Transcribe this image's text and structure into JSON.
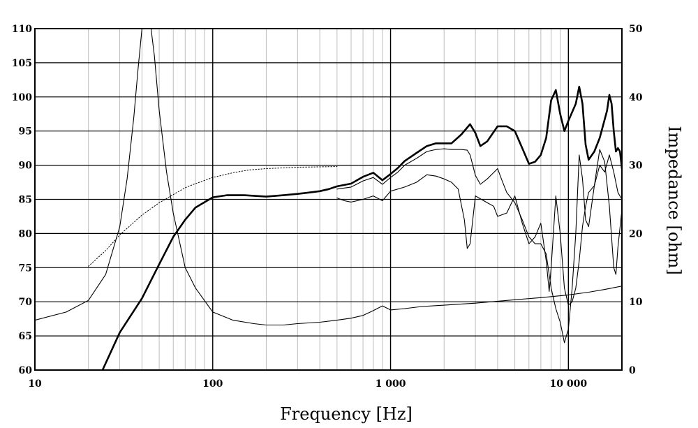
{
  "chart_data": {
    "type": "line",
    "title": "",
    "xlabel": "Frequency [Hz]",
    "ylabel": "",
    "y2label": "Impedance [ohm]",
    "x_scale": "log",
    "xlim": [
      10,
      20000
    ],
    "ylim": [
      60,
      110
    ],
    "y2lim": [
      0,
      50
    ],
    "grid": true,
    "x_ticks": [
      {
        "value": 10,
        "label": "10"
      },
      {
        "value": 100,
        "label": "100"
      },
      {
        "value": 1000,
        "label": "1 000"
      },
      {
        "value": 10000,
        "label": "10 000"
      }
    ],
    "y_ticks": [
      {
        "value": 110,
        "label": "110"
      },
      {
        "value": 105,
        "label": "105"
      },
      {
        "value": 100,
        "label": "100"
      },
      {
        "value": 95,
        "label": "95"
      },
      {
        "value": 90,
        "label": "90"
      },
      {
        "value": 85,
        "label": "85"
      },
      {
        "value": 80,
        "label": "80"
      },
      {
        "value": 75,
        "label": "75"
      },
      {
        "value": 70,
        "label": "70"
      },
      {
        "value": 65,
        "label": "65"
      },
      {
        "value": 60,
        "label": "60"
      }
    ],
    "y2_ticks": [
      {
        "value": 50,
        "label": "50"
      },
      {
        "value": 40,
        "label": "40"
      },
      {
        "value": 30,
        "label": "30"
      },
      {
        "value": 20,
        "label": "20"
      },
      {
        "value": 10,
        "label": "10"
      },
      {
        "value": 0,
        "label": "0"
      }
    ],
    "series": [
      {
        "axis": "y",
        "style": "thick",
        "color": "#000000",
        "points": [
          [
            24,
            60
          ],
          [
            30,
            65.5
          ],
          [
            40,
            70.5
          ],
          [
            50,
            75.5
          ],
          [
            60,
            79.5
          ],
          [
            70,
            82
          ],
          [
            80,
            83.8
          ],
          [
            100,
            85.3
          ],
          [
            120,
            85.6
          ],
          [
            150,
            85.6
          ],
          [
            200,
            85.4
          ],
          [
            250,
            85.6
          ],
          [
            300,
            85.8
          ],
          [
            350,
            86
          ],
          [
            400,
            86.2
          ],
          [
            450,
            86.5
          ],
          [
            500,
            86.9
          ],
          [
            600,
            87.3
          ],
          [
            700,
            88.3
          ],
          [
            800,
            88.9
          ],
          [
            900,
            87.8
          ],
          [
            1000,
            88.7
          ],
          [
            1100,
            89.6
          ],
          [
            1200,
            90.6
          ],
          [
            1400,
            91.8
          ],
          [
            1600,
            92.8
          ],
          [
            1800,
            93.2
          ],
          [
            2000,
            93.2
          ],
          [
            2200,
            93.2
          ],
          [
            2500,
            94.5
          ],
          [
            2800,
            96
          ],
          [
            3000,
            94.7
          ],
          [
            3200,
            92.8
          ],
          [
            3500,
            93.5
          ],
          [
            4000,
            95.7
          ],
          [
            4500,
            95.7
          ],
          [
            5000,
            95
          ],
          [
            5500,
            92.5
          ],
          [
            6000,
            90.2
          ],
          [
            6500,
            90.5
          ],
          [
            7000,
            91.5
          ],
          [
            7500,
            94
          ],
          [
            8000,
            99.5
          ],
          [
            8500,
            101
          ],
          [
            9000,
            97.5
          ],
          [
            9500,
            95
          ],
          [
            10000,
            96.5
          ],
          [
            11000,
            99
          ],
          [
            11500,
            101.5
          ],
          [
            12000,
            99
          ],
          [
            12500,
            93
          ],
          [
            13000,
            90.8
          ],
          [
            14000,
            92
          ],
          [
            15000,
            94
          ],
          [
            16500,
            98
          ],
          [
            17000,
            100.3
          ],
          [
            17500,
            99
          ],
          [
            18000,
            95
          ],
          [
            18500,
            92
          ],
          [
            19000,
            92.5
          ],
          [
            19500,
            92
          ],
          [
            20000,
            89.5
          ]
        ]
      },
      {
        "axis": "y",
        "style": "thin",
        "color": "#000000",
        "points": [
          [
            500,
            86.5
          ],
          [
            600,
            86.8
          ],
          [
            700,
            87.7
          ],
          [
            800,
            88.2
          ],
          [
            900,
            87.2
          ],
          [
            1000,
            88.2
          ],
          [
            1100,
            89
          ],
          [
            1200,
            90
          ],
          [
            1400,
            91
          ],
          [
            1600,
            92
          ],
          [
            1800,
            92.3
          ],
          [
            2000,
            92.4
          ],
          [
            2200,
            92.3
          ],
          [
            2500,
            92.3
          ],
          [
            2700,
            92.2
          ],
          [
            2800,
            91.5
          ],
          [
            3000,
            88.5
          ],
          [
            3200,
            87.2
          ],
          [
            3500,
            88
          ],
          [
            4000,
            89.5
          ],
          [
            4200,
            88
          ],
          [
            4500,
            86
          ],
          [
            5000,
            84.5
          ],
          [
            5500,
            82
          ],
          [
            6000,
            79.5
          ],
          [
            6500,
            78.5
          ],
          [
            7000,
            78.5
          ],
          [
            7500,
            77
          ],
          [
            8000,
            72
          ],
          [
            8500,
            69
          ],
          [
            9000,
            67
          ],
          [
            9500,
            64
          ],
          [
            10000,
            66
          ],
          [
            10500,
            72
          ],
          [
            11000,
            80
          ],
          [
            11500,
            91.5
          ],
          [
            12000,
            88
          ],
          [
            12500,
            82
          ],
          [
            13000,
            81
          ],
          [
            14000,
            87
          ],
          [
            15000,
            90
          ],
          [
            16000,
            89
          ],
          [
            17000,
            91.5
          ],
          [
            18000,
            89
          ],
          [
            19000,
            86
          ],
          [
            20000,
            85
          ]
        ]
      },
      {
        "axis": "y",
        "style": "thin",
        "color": "#000000",
        "points": [
          [
            500,
            85.2
          ],
          [
            550,
            84.8
          ],
          [
            600,
            84.6
          ],
          [
            700,
            85
          ],
          [
            800,
            85.5
          ],
          [
            900,
            84.8
          ],
          [
            1000,
            86.2
          ],
          [
            1200,
            86.8
          ],
          [
            1400,
            87.5
          ],
          [
            1600,
            88.6
          ],
          [
            1800,
            88.4
          ],
          [
            2000,
            88
          ],
          [
            2200,
            87.5
          ],
          [
            2400,
            86.5
          ],
          [
            2600,
            82
          ],
          [
            2700,
            77.8
          ],
          [
            2800,
            78.5
          ],
          [
            3000,
            85.5
          ],
          [
            3500,
            84.5
          ],
          [
            3800,
            84
          ],
          [
            4000,
            82.5
          ],
          [
            4500,
            83
          ],
          [
            5000,
            85.5
          ],
          [
            5500,
            81.5
          ],
          [
            6000,
            78.5
          ],
          [
            6500,
            79.5
          ],
          [
            7000,
            81.5
          ],
          [
            7500,
            76
          ],
          [
            7800,
            71.5
          ],
          [
            8000,
            75
          ],
          [
            8500,
            85.5
          ],
          [
            9000,
            80
          ],
          [
            9500,
            72
          ],
          [
            10000,
            69.5
          ],
          [
            10500,
            70
          ],
          [
            11000,
            72
          ],
          [
            11500,
            76
          ],
          [
            12000,
            81
          ],
          [
            12500,
            84
          ],
          [
            13000,
            86
          ],
          [
            14000,
            87
          ],
          [
            15000,
            92.3
          ],
          [
            16000,
            90.5
          ],
          [
            17000,
            84
          ],
          [
            18000,
            75
          ],
          [
            18500,
            74
          ],
          [
            19000,
            78
          ],
          [
            20000,
            83.5
          ]
        ]
      },
      {
        "axis": "y",
        "style": "dotted",
        "color": "#000000",
        "points": [
          [
            20,
            75.2
          ],
          [
            25,
            77.5
          ],
          [
            30,
            79.8
          ],
          [
            40,
            82.7
          ],
          [
            50,
            84.5
          ],
          [
            60,
            85.7
          ],
          [
            70,
            86.7
          ],
          [
            80,
            87.3
          ],
          [
            100,
            88.2
          ],
          [
            130,
            88.9
          ],
          [
            160,
            89.3
          ],
          [
            200,
            89.5
          ],
          [
            300,
            89.7
          ],
          [
            500,
            89.8
          ]
        ]
      },
      {
        "axis": "y2",
        "style": "thin",
        "color": "#000000",
        "points": [
          [
            10,
            7.3
          ],
          [
            15,
            8.5
          ],
          [
            20,
            10.2
          ],
          [
            25,
            14
          ],
          [
            30,
            21
          ],
          [
            33,
            28
          ],
          [
            36,
            37
          ],
          [
            38,
            44
          ],
          [
            40,
            50
          ],
          [
            42,
            50
          ],
          [
            45,
            50
          ],
          [
            47,
            46
          ],
          [
            50,
            38
          ],
          [
            55,
            29
          ],
          [
            60,
            23
          ],
          [
            70,
            15
          ],
          [
            80,
            12
          ],
          [
            100,
            8.5
          ],
          [
            130,
            7.3
          ],
          [
            170,
            6.8
          ],
          [
            200,
            6.6
          ],
          [
            250,
            6.6
          ],
          [
            300,
            6.8
          ],
          [
            400,
            7
          ],
          [
            500,
            7.3
          ],
          [
            600,
            7.6
          ],
          [
            700,
            8
          ],
          [
            800,
            8.7
          ],
          [
            900,
            9.4
          ],
          [
            1000,
            8.8
          ],
          [
            1200,
            9
          ],
          [
            1500,
            9.3
          ],
          [
            2000,
            9.5
          ],
          [
            3000,
            9.8
          ],
          [
            5000,
            10.3
          ],
          [
            7000,
            10.6
          ],
          [
            10000,
            11
          ],
          [
            13000,
            11.4
          ],
          [
            16000,
            11.8
          ],
          [
            20000,
            12.3
          ]
        ]
      }
    ]
  }
}
